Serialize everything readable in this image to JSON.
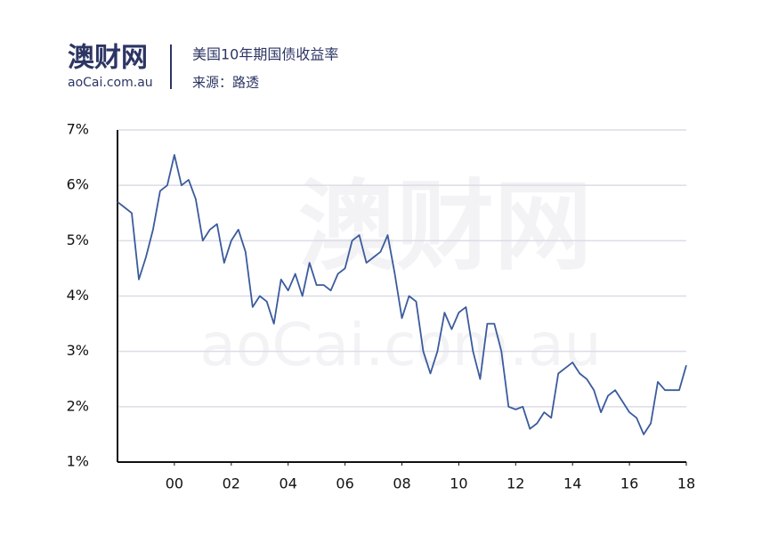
{
  "brand": {
    "name": "澳财网",
    "site": "aoCai.com.au"
  },
  "chart_data": {
    "type": "line",
    "title": "美国10年期国债收益率",
    "subtitle": "来源：路透",
    "x": [
      1998.0,
      1998.25,
      1998.5,
      1998.75,
      1999.0,
      1999.25,
      1999.5,
      1999.75,
      2000.0,
      2000.25,
      2000.5,
      2000.75,
      2001.0,
      2001.25,
      2001.5,
      2001.75,
      2002.0,
      2002.25,
      2002.5,
      2002.75,
      2003.0,
      2003.25,
      2003.5,
      2003.75,
      2004.0,
      2004.25,
      2004.5,
      2004.75,
      2005.0,
      2005.25,
      2005.5,
      2005.75,
      2006.0,
      2006.25,
      2006.5,
      2006.75,
      2007.0,
      2007.25,
      2007.5,
      2007.75,
      2008.0,
      2008.25,
      2008.5,
      2008.75,
      2009.0,
      2009.25,
      2009.5,
      2009.75,
      2010.0,
      2010.25,
      2010.5,
      2010.75,
      2011.0,
      2011.25,
      2011.5,
      2011.75,
      2012.0,
      2012.25,
      2012.5,
      2012.75,
      2013.0,
      2013.25,
      2013.5,
      2013.75,
      2014.0,
      2014.25,
      2014.5,
      2014.75,
      2015.0,
      2015.25,
      2015.5,
      2015.75,
      2016.0,
      2016.25,
      2016.5,
      2016.75,
      2017.0,
      2017.25,
      2017.5,
      2017.75,
      2018.0
    ],
    "series": [
      {
        "name": "美国10年期国债收益率",
        "color": "#3b5b9c",
        "values": [
          5.7,
          5.6,
          5.5,
          4.3,
          4.7,
          5.2,
          5.9,
          6.0,
          6.55,
          6.0,
          6.1,
          5.75,
          5.0,
          5.2,
          5.3,
          4.6,
          5.0,
          5.2,
          4.8,
          3.8,
          4.0,
          3.9,
          3.5,
          4.3,
          4.1,
          4.4,
          4.0,
          4.6,
          4.2,
          4.2,
          4.1,
          4.4,
          4.5,
          5.0,
          5.1,
          4.6,
          4.7,
          4.8,
          5.1,
          4.4,
          3.6,
          4.0,
          3.9,
          3.0,
          2.6,
          3.0,
          3.7,
          3.4,
          3.7,
          3.8,
          3.0,
          2.5,
          3.5,
          3.5,
          3.0,
          2.0,
          1.95,
          2.0,
          1.6,
          1.7,
          1.9,
          1.8,
          2.6,
          2.7,
          2.8,
          2.6,
          2.5,
          2.3,
          1.9,
          2.2,
          2.3,
          2.1,
          1.9,
          1.8,
          1.5,
          1.7,
          2.45,
          2.3,
          2.3,
          2.3,
          2.75
        ]
      }
    ],
    "xlim": [
      1998,
      2018
    ],
    "xticks": [
      {
        "value": 2000,
        "label": "00"
      },
      {
        "value": 2002,
        "label": "02"
      },
      {
        "value": 2004,
        "label": "04"
      },
      {
        "value": 2006,
        "label": "06"
      },
      {
        "value": 2008,
        "label": "08"
      },
      {
        "value": 2010,
        "label": "10"
      },
      {
        "value": 2012,
        "label": "12"
      },
      {
        "value": 2014,
        "label": "14"
      },
      {
        "value": 2016,
        "label": "16"
      },
      {
        "value": 2018,
        "label": "18"
      }
    ],
    "ylim": [
      1,
      7
    ],
    "yticks": [
      {
        "value": 1,
        "label": "1%"
      },
      {
        "value": 2,
        "label": "2%"
      },
      {
        "value": 3,
        "label": "3%"
      },
      {
        "value": 4,
        "label": "4%"
      },
      {
        "value": 5,
        "label": "5%"
      },
      {
        "value": 6,
        "label": "6%"
      },
      {
        "value": 7,
        "label": "7%"
      }
    ],
    "grid": true
  }
}
